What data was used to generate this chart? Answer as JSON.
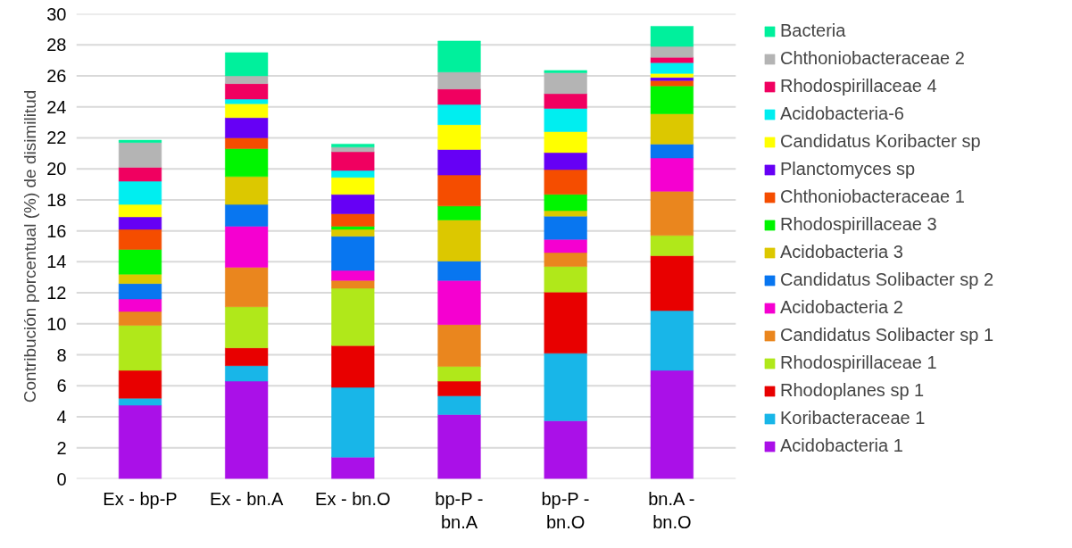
{
  "chart_data": {
    "type": "bar",
    "stacked": true,
    "ylabel": "Contribución porcentual (%) de disimilitud",
    "categories": [
      "Ex - bp-P",
      "Ex - bn.A",
      "Ex - bn.O",
      "bp-P - bn.A",
      "bp-P - bn.O",
      "bn.A - bn.O"
    ],
    "ylim": [
      0,
      30
    ],
    "yticks": [
      0,
      2,
      4,
      6,
      8,
      10,
      12,
      14,
      16,
      18,
      20,
      22,
      24,
      26,
      28,
      30
    ],
    "grid": "y",
    "legend": "right",
    "series": [
      {
        "name": "Acidobacteria 1",
        "color": "#aa10e8",
        "values": [
          4.75,
          6.3,
          1.4,
          4.15,
          3.75,
          7.0
        ]
      },
      {
        "name": "Koribacteraceae 1",
        "color": "#18b6e8",
        "values": [
          0.45,
          1.0,
          4.5,
          1.2,
          4.35,
          3.85
        ]
      },
      {
        "name": "Rhodoplanes sp 1",
        "color": "#e80000",
        "values": [
          1.8,
          1.15,
          2.7,
          0.95,
          3.95,
          3.55
        ]
      },
      {
        "name": "Rhodospirillaceae 1",
        "color": "#b0e81a",
        "values": [
          2.9,
          2.65,
          3.7,
          0.95,
          1.65,
          1.3
        ]
      },
      {
        "name": "Candidatus Solibacter sp 1",
        "color": "#ea861e",
        "values": [
          0.9,
          2.55,
          0.5,
          2.7,
          0.9,
          2.85
        ]
      },
      {
        "name": "Acidobacteria 2",
        "color": "#f500d0",
        "values": [
          0.8,
          2.65,
          0.65,
          2.85,
          0.85,
          2.15
        ]
      },
      {
        "name": "Candidatus Solibacter sp 2",
        "color": "#0876f0",
        "values": [
          1.0,
          1.4,
          2.2,
          1.25,
          1.5,
          0.9
        ]
      },
      {
        "name": "Acidobacteria 3",
        "color": "#dcc800",
        "values": [
          0.6,
          1.8,
          0.45,
          2.65,
          0.35,
          1.95
        ]
      },
      {
        "name": "Rhodospirillaceae 3",
        "color": "#00f500",
        "values": [
          1.6,
          1.8,
          0.2,
          0.9,
          1.05,
          1.8
        ]
      },
      {
        "name": "Chthoniobacteraceae 1",
        "color": "#f54d00",
        "values": [
          1.3,
          0.7,
          0.8,
          2.0,
          1.6,
          0.35
        ]
      },
      {
        "name": "Planctomyces sp",
        "color": "#6600f5",
        "values": [
          0.8,
          1.3,
          1.25,
          1.65,
          1.1,
          0.2
        ]
      },
      {
        "name": "Candidatus Koribacter sp",
        "color": "#ffff00",
        "values": [
          0.8,
          0.9,
          1.1,
          1.6,
          1.35,
          0.25
        ]
      },
      {
        "name": "Acidobacteria-6",
        "color": "#00eef0",
        "values": [
          1.5,
          0.3,
          0.45,
          1.3,
          1.5,
          0.7
        ]
      },
      {
        "name": "Rhodospirillaceae 4",
        "color": "#f00060",
        "values": [
          0.9,
          1.0,
          1.2,
          1.0,
          0.95,
          0.35
        ]
      },
      {
        "name": "Chthoniobacteraceae 2",
        "color": "#b4b4b4",
        "values": [
          1.6,
          0.5,
          0.3,
          1.1,
          1.35,
          0.7
        ]
      },
      {
        "name": "Bacteria",
        "color": "#00f09c",
        "values": [
          0.15,
          1.5,
          0.2,
          2.0,
          0.15,
          1.3
        ]
      }
    ]
  }
}
